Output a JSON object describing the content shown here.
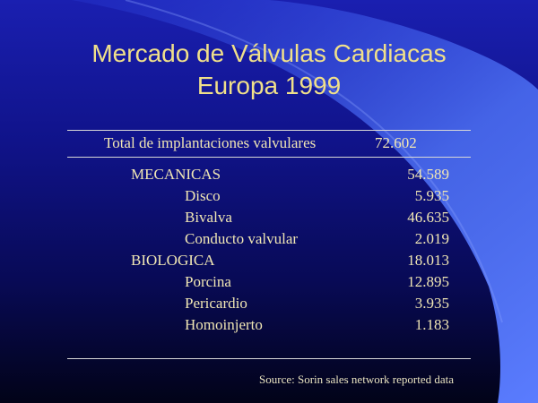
{
  "slide": {
    "title_line1": "Mercado de Válvulas Cardiacas",
    "title_line2": "Europa 1999",
    "total": {
      "label": "Total de implantaciones valvulares",
      "value": "72.602"
    },
    "rows": [
      {
        "label": "MECANICAS",
        "value": "54.589",
        "level": "category"
      },
      {
        "label": "Disco",
        "value": "5.935",
        "level": "sub"
      },
      {
        "label": "Bivalva",
        "value": "46.635",
        "level": "sub"
      },
      {
        "label": "Conducto valvular",
        "value": "2.019",
        "level": "sub"
      },
      {
        "label": "BIOLOGICA",
        "value": "18.013",
        "level": "category"
      },
      {
        "label": "Porcina",
        "value": "12.895",
        "level": "sub"
      },
      {
        "label": "Pericardio",
        "value": "3.935",
        "level": "sub"
      },
      {
        "label": "Homoinjerto",
        "value": "1.183",
        "level": "sub"
      }
    ],
    "source": "Source: Sorin sales network reported data"
  },
  "colors": {
    "title": "#f0e08a",
    "text": "#f0e6b4",
    "background_top": "#1a1fb0",
    "background_bottom": "#020318",
    "accent_swoosh": "#4a6cf0"
  }
}
